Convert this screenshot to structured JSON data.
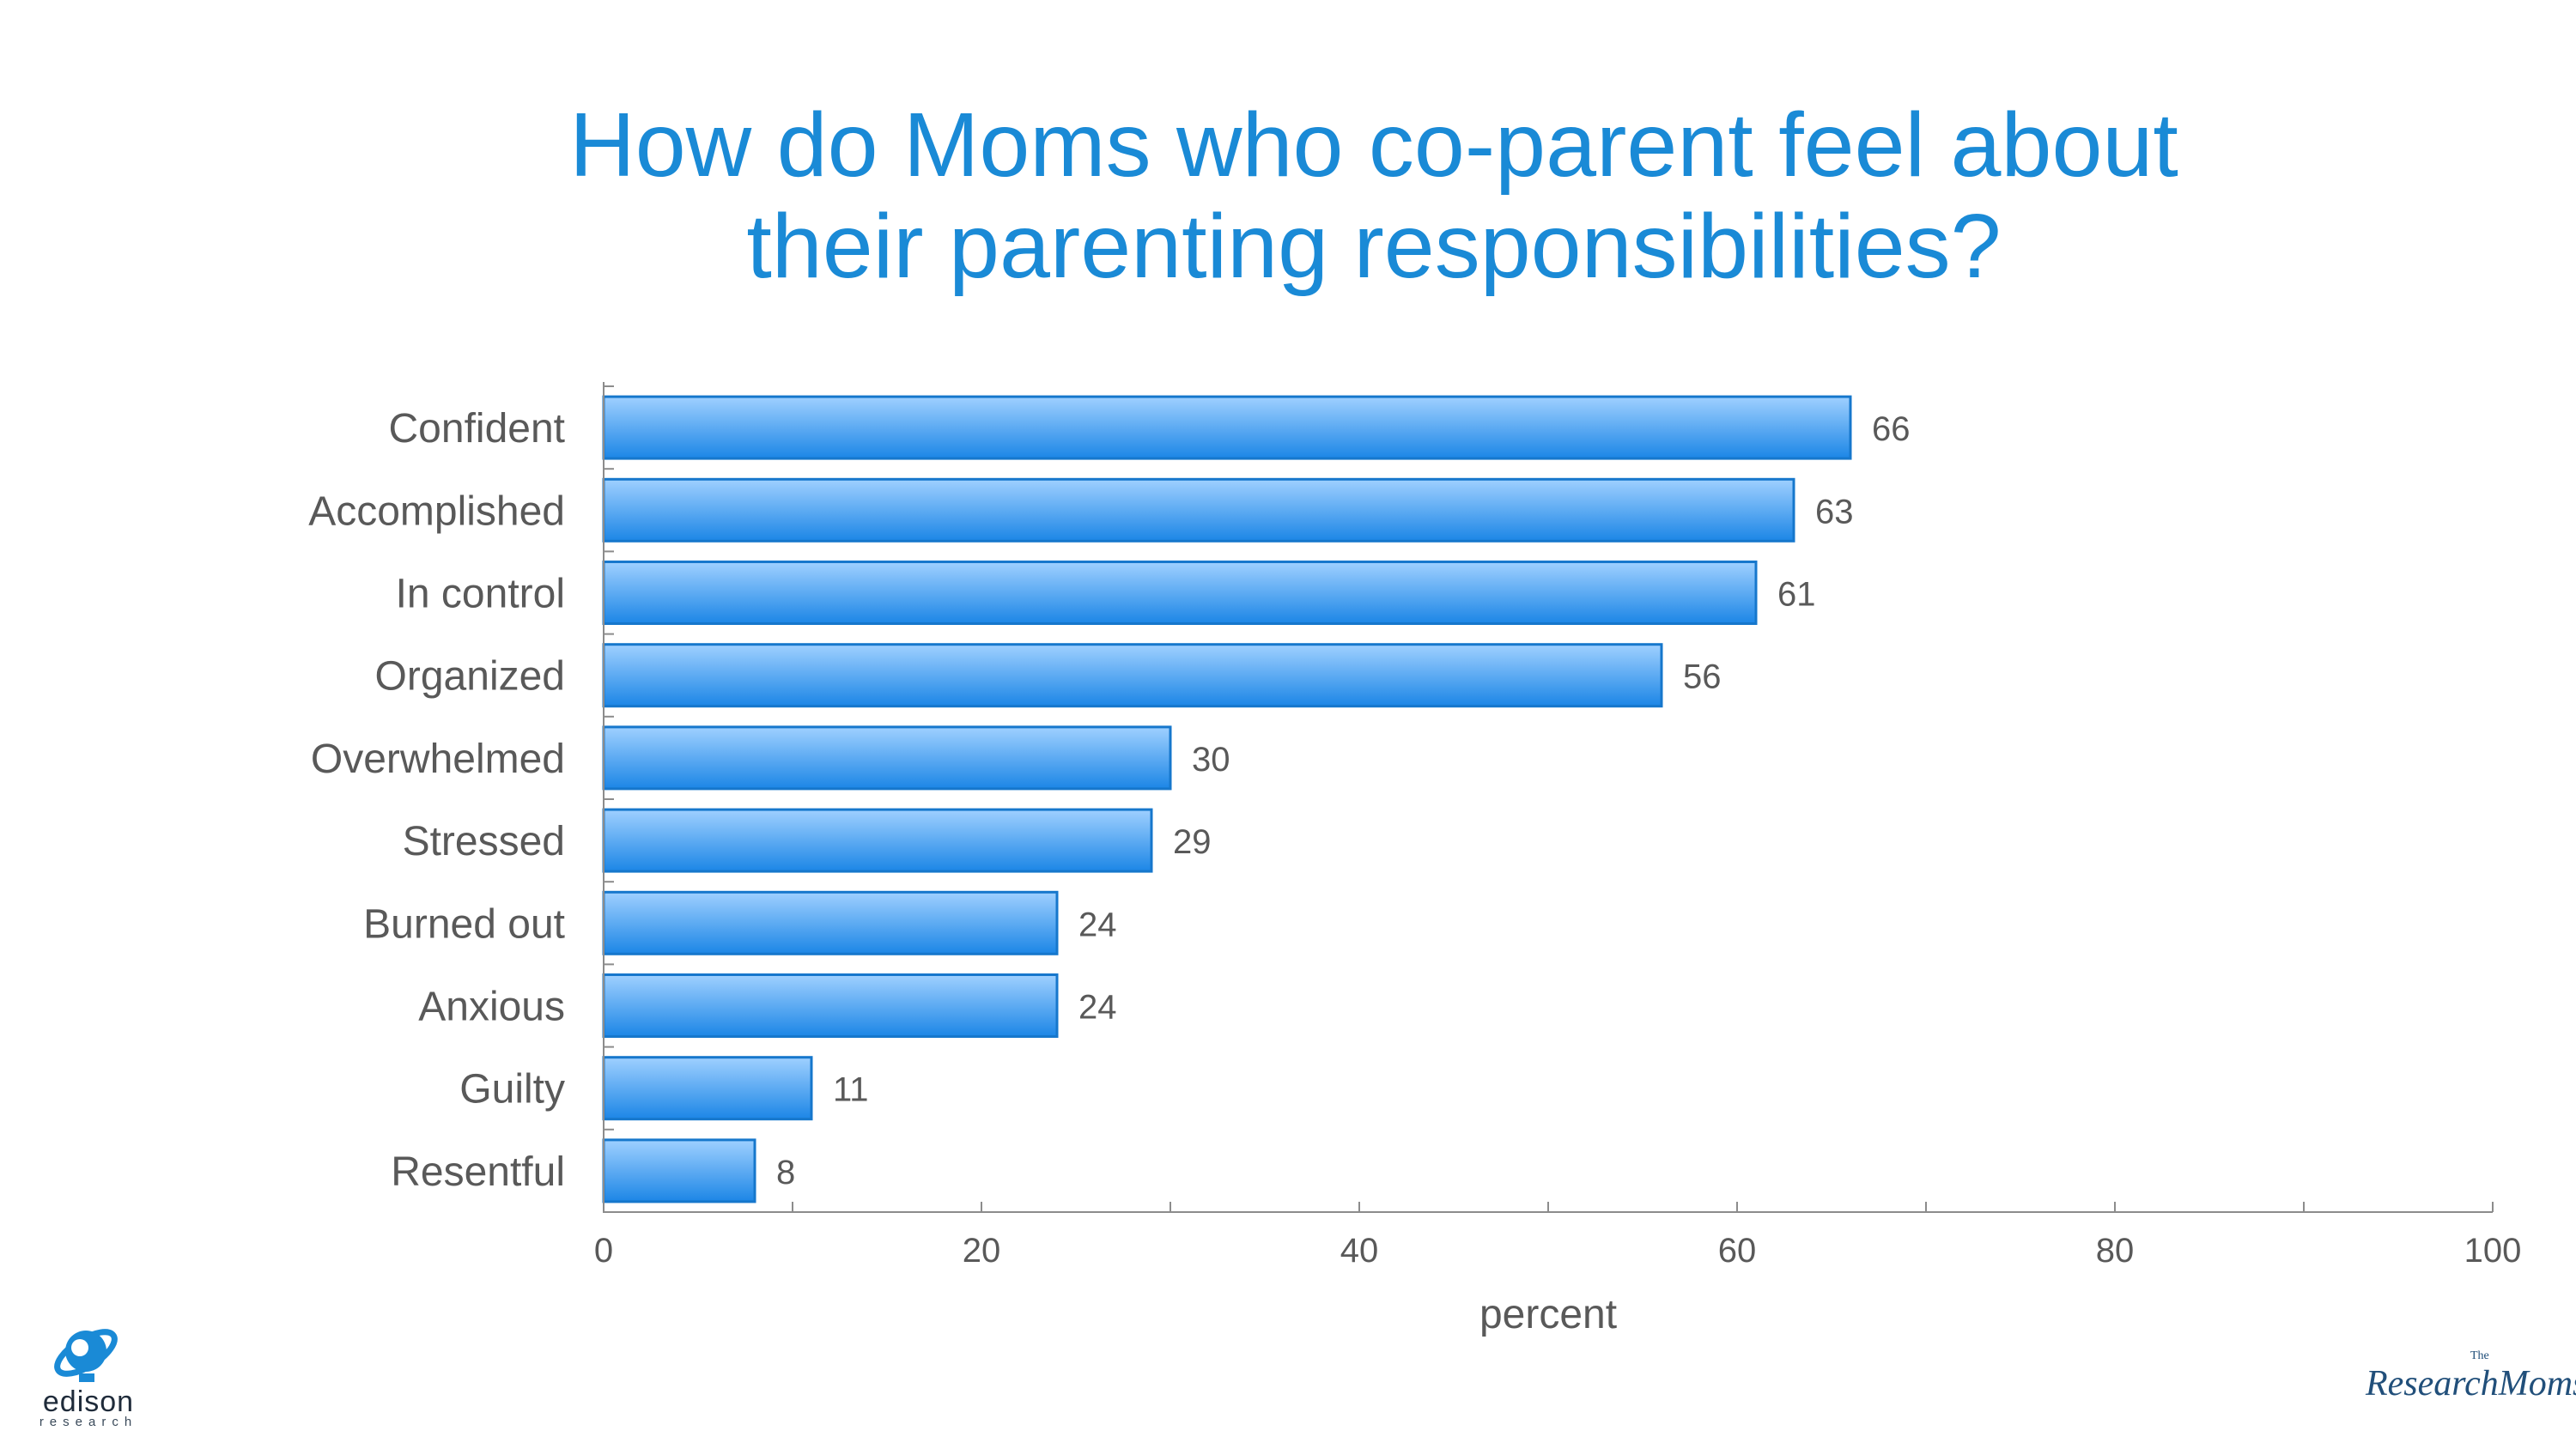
{
  "title_lines": [
    "How do Moms who co-parent feel about",
    "their parenting responsibilities?"
  ],
  "chart_data": {
    "type": "bar",
    "orientation": "horizontal",
    "title": "How do Moms who co-parent feel about their parenting responsibilities?",
    "categories": [
      "Confident",
      "Accomplished",
      "In control",
      "Organized",
      "Overwhelmed",
      "Stressed",
      "Burned out",
      "Anxious",
      "Guilty",
      "Resentful"
    ],
    "values": [
      66,
      63,
      61,
      56,
      30,
      29,
      24,
      24,
      11,
      8
    ],
    "xlabel": "percent",
    "ylabel": "",
    "xlim": [
      0,
      100
    ],
    "xticks": [
      "0",
      "20",
      "40",
      "60",
      "80",
      "100"
    ],
    "data_labels": true,
    "grid": false,
    "legend": "none"
  },
  "colors": {
    "title": "#1a8ad6",
    "bar_top": "#9fd0ff",
    "bar_bottom": "#1c86e6",
    "bar_stroke": "#1677cc",
    "axis": "#8c8c8c",
    "label_text": "#595959"
  },
  "logos": {
    "edison": {
      "icon": "edison-lightbulb-icon",
      "wordmark": "edison",
      "sub": "research"
    },
    "research_moms": {
      "the": "The",
      "wordmark": "ResearchMoms"
    }
  }
}
